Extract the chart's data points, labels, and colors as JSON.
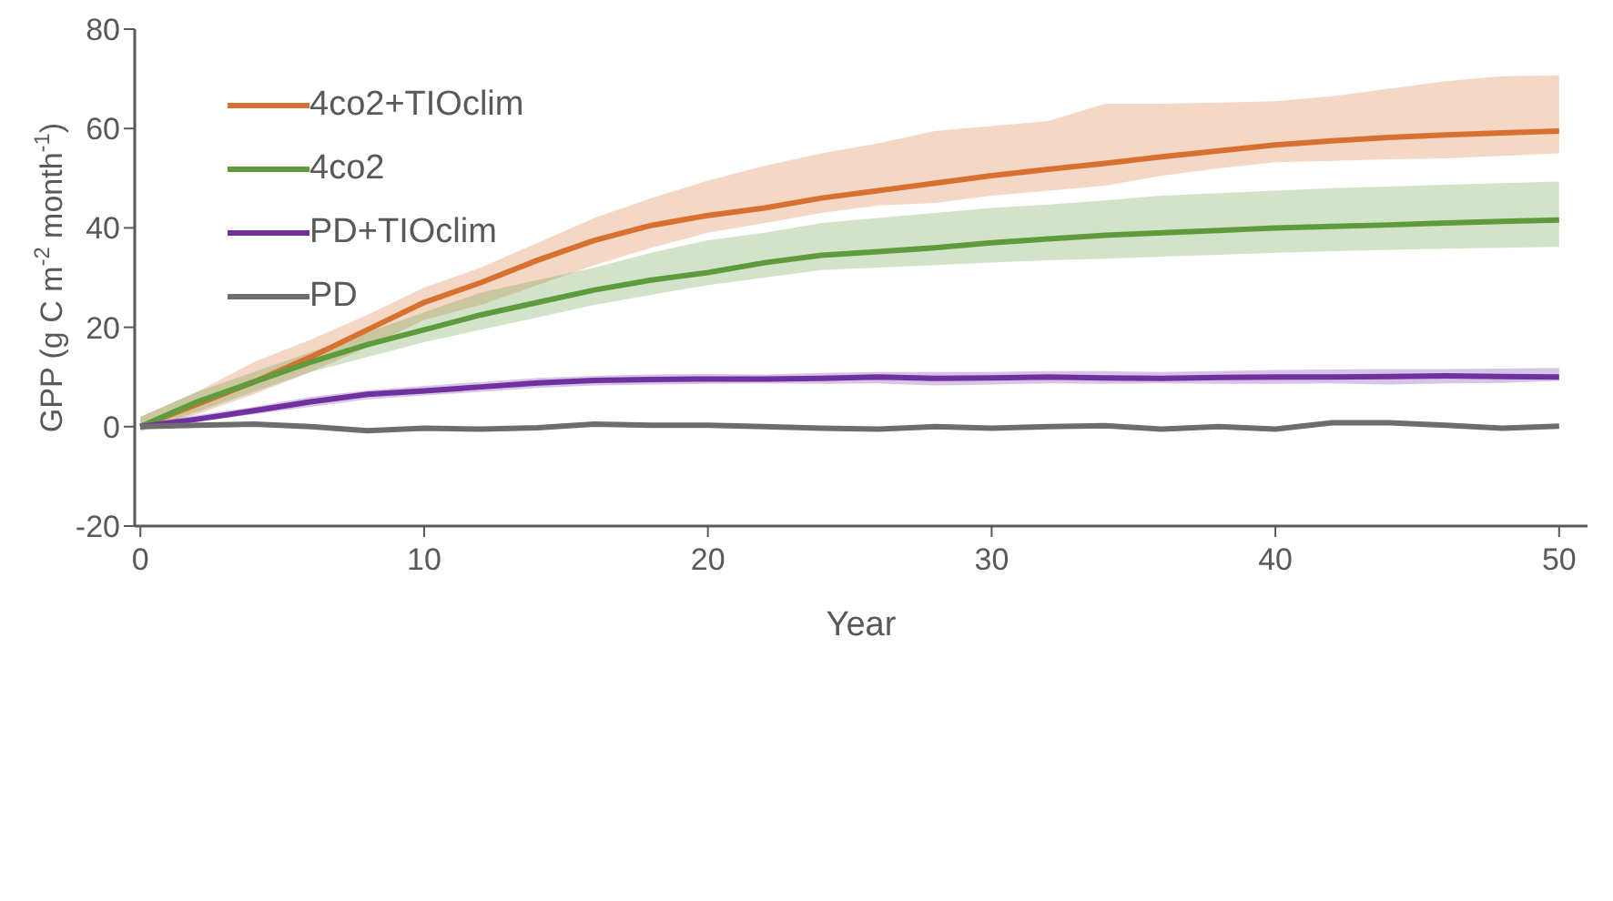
{
  "chart_data": {
    "type": "line",
    "xlabel": "Year",
    "ylabel": "GPP (g C m$^{-2}$ month$^{-1}$)",
    "x": [
      0,
      2,
      4,
      6,
      8,
      10,
      12,
      14,
      16,
      18,
      20,
      22,
      24,
      26,
      28,
      30,
      32,
      34,
      36,
      38,
      40,
      42,
      44,
      46,
      48,
      50
    ],
    "series": [
      {
        "name": "4co2+TIOclim",
        "color": "#d8712f",
        "values": [
          0,
          4.5,
          9,
          14,
          19.5,
          25,
          29,
          33.5,
          37.5,
          40.5,
          42.5,
          44,
          46,
          47.5,
          49,
          50.5,
          51.8,
          53,
          54.3,
          55.5,
          56.7,
          57.5,
          58.2,
          58.7,
          59.1,
          59.5
        ],
        "upper": [
          2,
          7,
          13,
          17.5,
          22.5,
          28,
          32,
          37,
          42,
          46,
          49.5,
          52.5,
          55,
          57,
          59.5,
          60.5,
          61.5,
          65,
          65,
          65.2,
          65.5,
          66.5,
          68,
          69.5,
          70.5,
          70.7
        ],
        "lower": [
          -0.5,
          2.5,
          6.5,
          11,
          16,
          21.5,
          24.5,
          28.5,
          32.5,
          36,
          39,
          41,
          43,
          44.5,
          45,
          46.5,
          47.5,
          48.5,
          50.5,
          52,
          53.2,
          53.5,
          53.8,
          54,
          54.5,
          55
        ]
      },
      {
        "name": "4co2",
        "color": "#5e9b3c",
        "values": [
          0,
          5,
          9,
          13,
          16.5,
          19.5,
          22.5,
          25,
          27.5,
          29.5,
          31,
          33,
          34.5,
          35.2,
          36,
          37,
          37.8,
          38.5,
          39,
          39.5,
          40,
          40.3,
          40.6,
          41,
          41.3,
          41.6
        ],
        "upper": [
          2,
          7,
          11,
          15,
          19,
          23,
          27,
          29.5,
          32,
          35,
          37.5,
          39,
          41,
          42,
          43,
          44,
          44.7,
          45.5,
          46.5,
          47,
          47.5,
          48,
          48.3,
          48.7,
          49,
          49.3
        ],
        "lower": [
          -1,
          3,
          7,
          11,
          14,
          17,
          19.5,
          22,
          24.5,
          26.5,
          28.5,
          30,
          31.5,
          32,
          32.5,
          33,
          33.5,
          33.8,
          34.2,
          34.6,
          35,
          35.3,
          35.6,
          35.8,
          36,
          36.2
        ]
      },
      {
        "name": "PD+TIOclim",
        "color": "#7030a0",
        "values": [
          0,
          1.5,
          3.2,
          5,
          6.5,
          7.2,
          8,
          8.8,
          9.3,
          9.5,
          9.6,
          9.6,
          9.7,
          10,
          9.7,
          9.8,
          10,
          9.8,
          9.7,
          9.9,
          10,
          10,
          10.1,
          10.2,
          10.1,
          10
        ],
        "upper": [
          0.5,
          2.3,
          4,
          6,
          7.3,
          8.2,
          9,
          9.8,
          10.2,
          10.5,
          10.6,
          10.5,
          10.8,
          11,
          11,
          11,
          11.2,
          11.2,
          11,
          11.2,
          11.4,
          11.5,
          11.6,
          11.6,
          11.7,
          11.8
        ],
        "lower": [
          -0.5,
          1,
          2.5,
          4,
          5.5,
          6.3,
          7,
          7.8,
          8.3,
          8.5,
          8.6,
          8.7,
          8.6,
          8.7,
          8.3,
          8.5,
          8.7,
          8.6,
          8.7,
          8.6,
          8.6,
          8.7,
          8.5,
          8.7,
          8.8,
          9.2
        ]
      },
      {
        "name": "PD",
        "color": "#6d6d6d",
        "values": [
          0,
          0.3,
          0.5,
          0,
          -0.8,
          -0.3,
          -0.5,
          -0.2,
          0.5,
          0.3,
          0.3,
          0,
          -0.3,
          -0.5,
          0,
          -0.3,
          0,
          0.2,
          -0.5,
          0,
          -0.5,
          0.8,
          0.8,
          0.3,
          -0.3,
          0.1
        ]
      }
    ],
    "xlim": [
      -0.2,
      51
    ],
    "xticks": [
      0,
      10,
      20,
      30,
      40,
      50
    ],
    "ylim": [
      -20,
      80
    ],
    "yticks": [
      -20,
      0,
      20,
      40,
      60,
      80
    ],
    "grid": false,
    "legend": "top left",
    "marker": "none",
    "line_style": "solid"
  }
}
